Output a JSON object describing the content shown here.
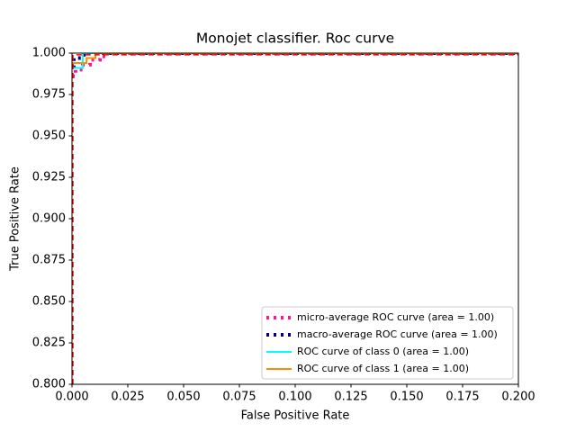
{
  "chart_data": {
    "type": "line",
    "title": "Monojet classifier. Roc curve",
    "xlabel": "False Positive Rate",
    "ylabel": "True Positive Rate",
    "xlim": [
      0,
      0.2
    ],
    "ylim": [
      0.8,
      1.0
    ],
    "xticks": [
      {
        "value": 0,
        "label": "0.000"
      },
      {
        "value": 0.025,
        "label": "0.025"
      },
      {
        "value": 0.05,
        "label": "0.050"
      },
      {
        "value": 0.075,
        "label": "0.075"
      },
      {
        "value": 0.1,
        "label": "0.100"
      },
      {
        "value": 0.125,
        "label": "0.125"
      },
      {
        "value": 0.15,
        "label": "0.150"
      },
      {
        "value": 0.175,
        "label": "0.175"
      },
      {
        "value": 0.2,
        "label": "0.200"
      }
    ],
    "yticks": [
      {
        "value": 0.8,
        "label": "0.800"
      },
      {
        "value": 0.825,
        "label": "0.825"
      },
      {
        "value": 0.85,
        "label": "0.850"
      },
      {
        "value": 0.875,
        "label": "0.875"
      },
      {
        "value": 0.9,
        "label": "0.900"
      },
      {
        "value": 0.925,
        "label": "0.925"
      },
      {
        "value": 0.95,
        "label": "0.950"
      },
      {
        "value": 0.975,
        "label": "0.975"
      },
      {
        "value": 1.0,
        "label": "1.000"
      }
    ],
    "legend": "lower right",
    "series": [
      {
        "name": "micro-average ROC curve (area = 1.00)",
        "color": "#ff1493",
        "style": "dotted",
        "x": [
          0,
          0.0016,
          0.0016,
          0.0048,
          0.0048,
          0.0081,
          0.0081,
          0.0125,
          0.0125,
          0.0153,
          0.0153,
          0.2
        ],
        "values": [
          0.986,
          0.986,
          0.99,
          0.99,
          0.993,
          0.993,
          0.996,
          0.996,
          0.998,
          0.998,
          1.0,
          1.0
        ]
      },
      {
        "name": "macro-average ROC curve (area = 1.00)",
        "color": "#000080",
        "style": "dotted",
        "x": [
          0,
          0.0008,
          0.0008,
          0.0053,
          0.0053,
          0.2
        ],
        "values": [
          0.992,
          0.992,
          0.997,
          0.997,
          1.0,
          1.0
        ]
      },
      {
        "name": "ROC curve of class 0 (area = 1.00)",
        "color": "#00ffff",
        "style": "solid",
        "x": [
          0,
          0.0048,
          0.0048,
          0.2
        ],
        "values": [
          0.991,
          0.991,
          1.0,
          1.0
        ]
      },
      {
        "name": "ROC curve of class 1 (area = 1.00)",
        "color": "#ff8c00",
        "style": "solid",
        "x": [
          0,
          0.0065,
          0.0065,
          0.0105,
          0.0105,
          0.2
        ],
        "values": [
          0.994,
          0.994,
          0.997,
          0.997,
          1.0,
          1.0
        ]
      },
      {
        "color": "#ff0000",
        "style": "dashed",
        "x": [
          0.0004,
          0.0004,
          0.2
        ],
        "values": [
          0.8,
          0.999,
          0.999
        ]
      }
    ]
  }
}
